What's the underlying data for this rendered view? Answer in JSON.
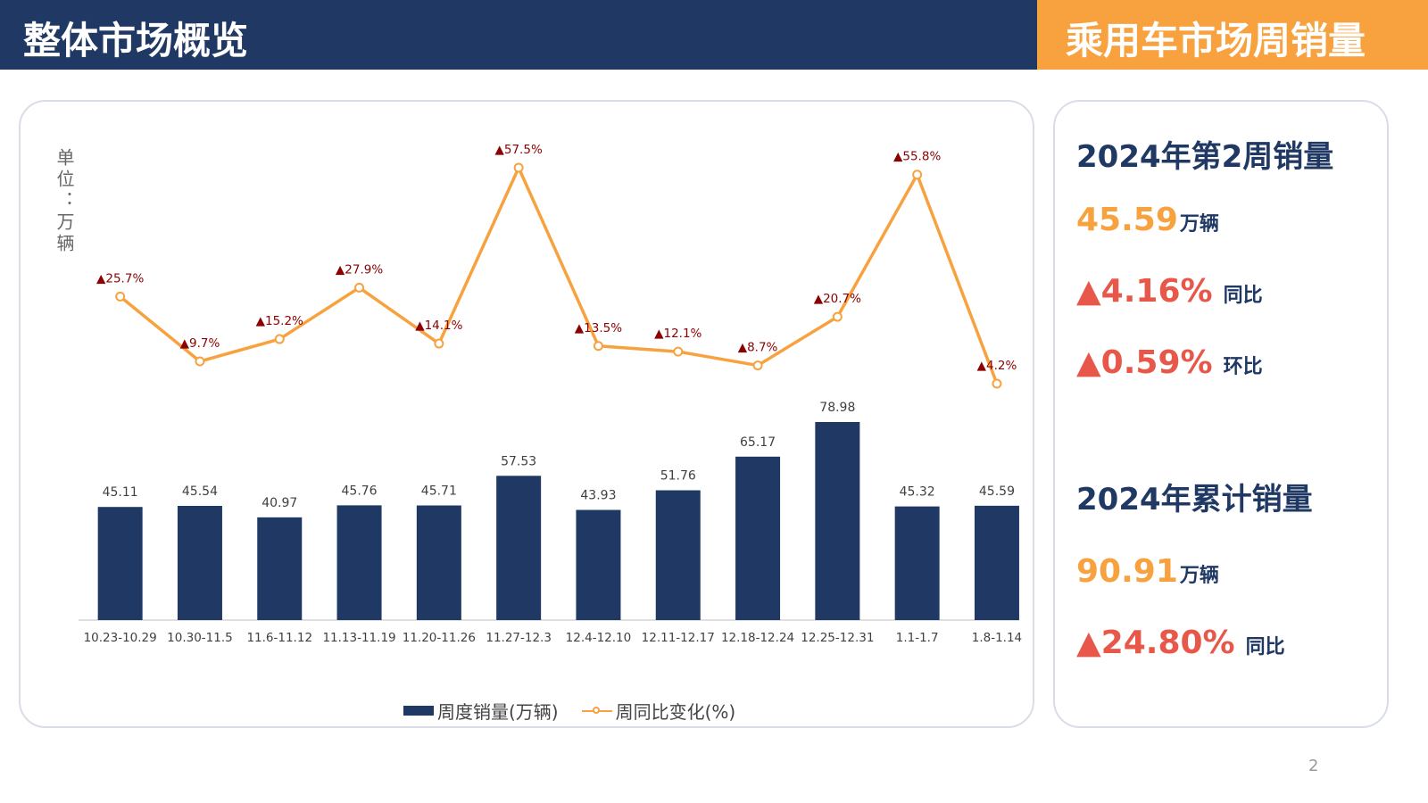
{
  "header": {
    "title_left": "整体市场概览",
    "title_right": "乘用车市场周销量"
  },
  "colors": {
    "navy": "#1f3864",
    "orange": "#f7a23f",
    "red": "#e8584a",
    "dark_red": "#8b0000"
  },
  "chart_data": {
    "type": "bar+line",
    "unit_label": "单位：万辆",
    "categories": [
      "10.23-10.29",
      "10.30-11.5",
      "11.6-11.12",
      "11.13-11.19",
      "11.20-11.26",
      "11.27-12.3",
      "12.4-12.10",
      "12.11-12.17",
      "12.18-12.24",
      "12.25-12.31",
      "1.1-1.7",
      "1.8-1.14"
    ],
    "series": [
      {
        "name": "周度销量(万辆)",
        "type": "bar",
        "values": [
          45.11,
          45.54,
          40.97,
          45.76,
          45.71,
          57.53,
          43.93,
          51.76,
          65.17,
          78.98,
          45.32,
          45.59
        ],
        "labels": [
          "45.11",
          "45.54",
          "40.97",
          "45.76",
          "45.71",
          "57.53",
          "43.93",
          "51.76",
          "65.17",
          "78.98",
          "45.32",
          "45.59"
        ]
      },
      {
        "name": "周同比变化(%)",
        "type": "line",
        "values": [
          25.7,
          9.7,
          15.2,
          27.9,
          14.1,
          57.5,
          13.5,
          12.1,
          8.7,
          20.7,
          55.8,
          4.2
        ],
        "labels": [
          "▲25.7%",
          "▲9.7%",
          "▲15.2%",
          "▲27.9%",
          "▲14.1%",
          "▲57.5%",
          "▲13.5%",
          "▲12.1%",
          "▲8.7%",
          "▲20.7%",
          "▲55.8%",
          "▲4.2%"
        ]
      }
    ]
  },
  "side": {
    "week_title": "2024年第2周销量",
    "week_value": "45.59",
    "week_unit": "万辆",
    "yoy_value": "▲4.16%",
    "yoy_label": "同比",
    "mom_value": "▲0.59%",
    "mom_label": "环比",
    "cum_title": "2024年累计销量",
    "cum_value": "90.91",
    "cum_unit": "万辆",
    "cum_yoy_value": "▲24.80%",
    "cum_yoy_label": "同比"
  },
  "page_number": "2"
}
